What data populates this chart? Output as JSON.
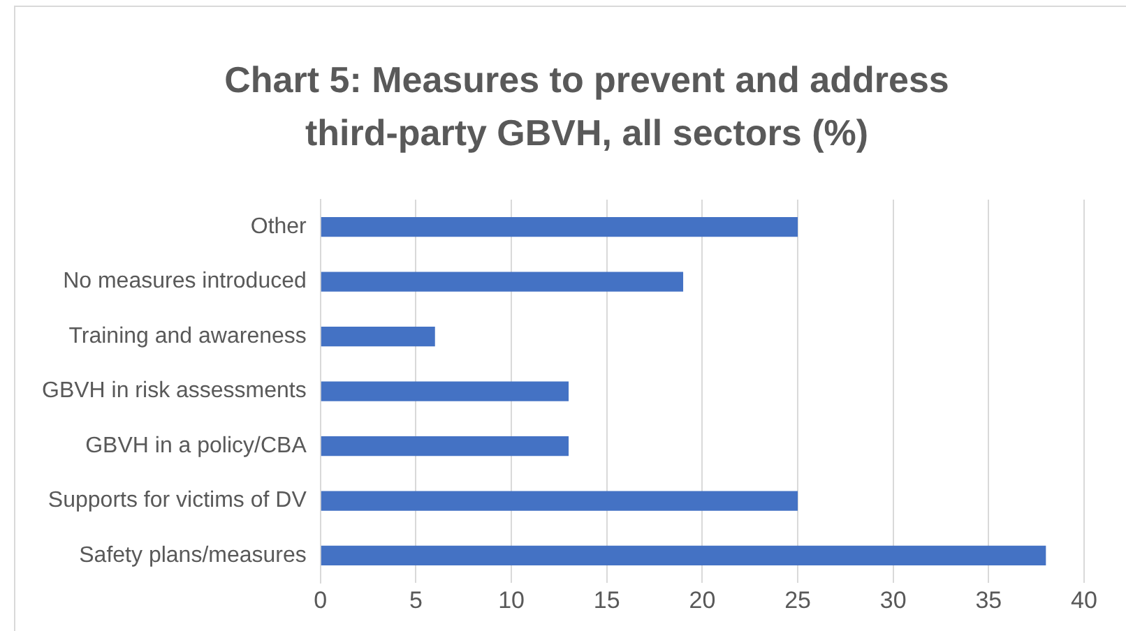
{
  "chart_data": {
    "type": "bar",
    "orientation": "horizontal",
    "title": "Chart 5: Measures to prevent and address third-party GBVH, all sectors (%)",
    "categories": [
      "Other",
      "No measures introduced",
      "Training and awareness",
      "GBVH in risk assessments",
      "GBVH in a policy/CBA",
      "Supports for victims of DV",
      "Safety plans/measures"
    ],
    "values": [
      25,
      19,
      6,
      13,
      13,
      25,
      38
    ],
    "color": "#4472c4",
    "xlim": [
      0,
      40
    ],
    "xticks": [
      0,
      5,
      10,
      15,
      20,
      25,
      30,
      35,
      40
    ],
    "grid": "x"
  }
}
